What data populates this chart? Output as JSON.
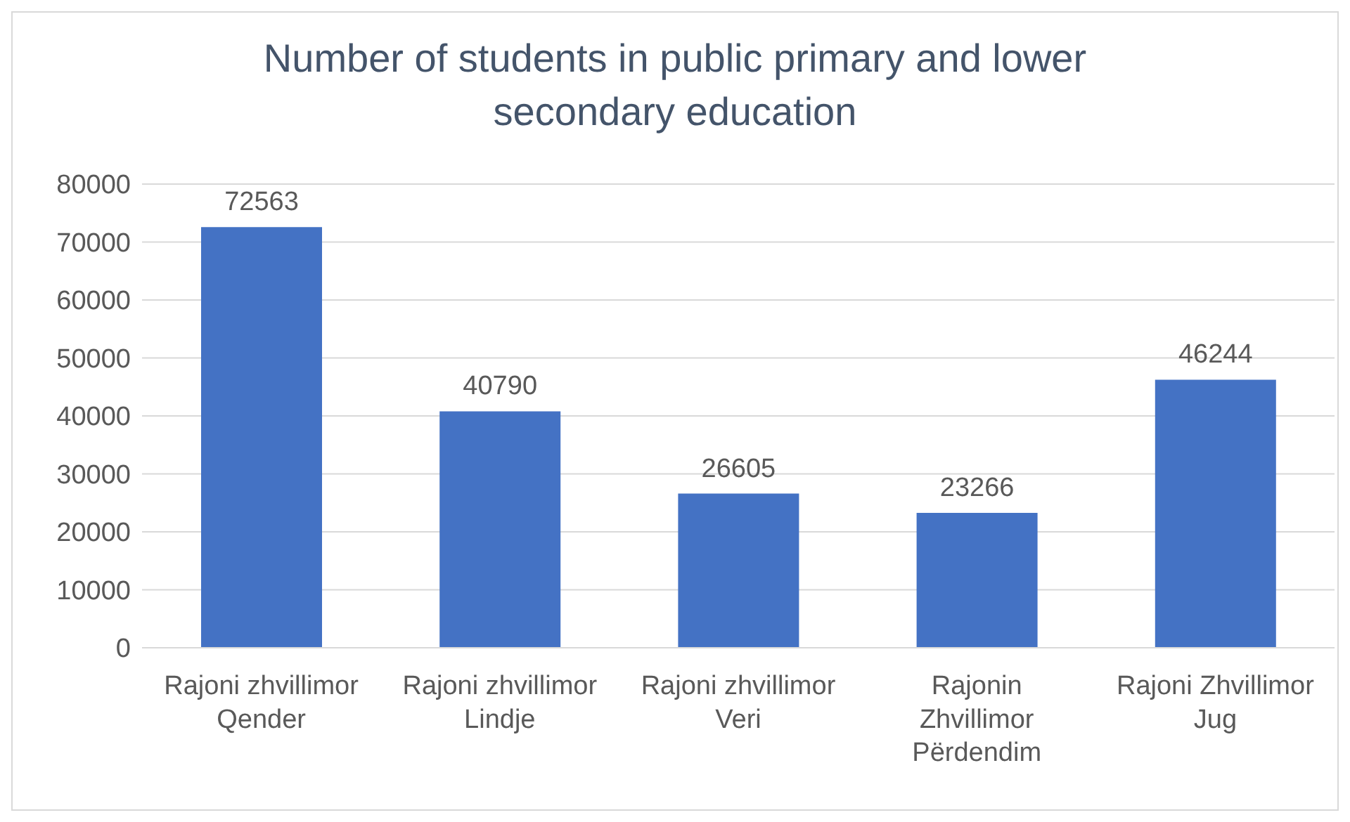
{
  "chart_data": {
    "type": "bar",
    "title": "Number of students in public primary and lower secondary education",
    "categories": [
      "Rajoni zhvillimor Qender",
      "Rajoni zhvillimor Lindje",
      "Rajoni zhvillimor Veri",
      "Rajonin Zhvillimor Përdendim",
      "Rajoni Zhvillimor Jug"
    ],
    "values": [
      72563,
      40790,
      26605,
      23266,
      46244
    ],
    "color": "#4472c4",
    "ylim": [
      0,
      80000
    ],
    "yticks": [
      0,
      10000,
      20000,
      30000,
      40000,
      50000,
      60000,
      70000,
      80000
    ],
    "grid": "y",
    "data_labels": true,
    "legend": false
  }
}
